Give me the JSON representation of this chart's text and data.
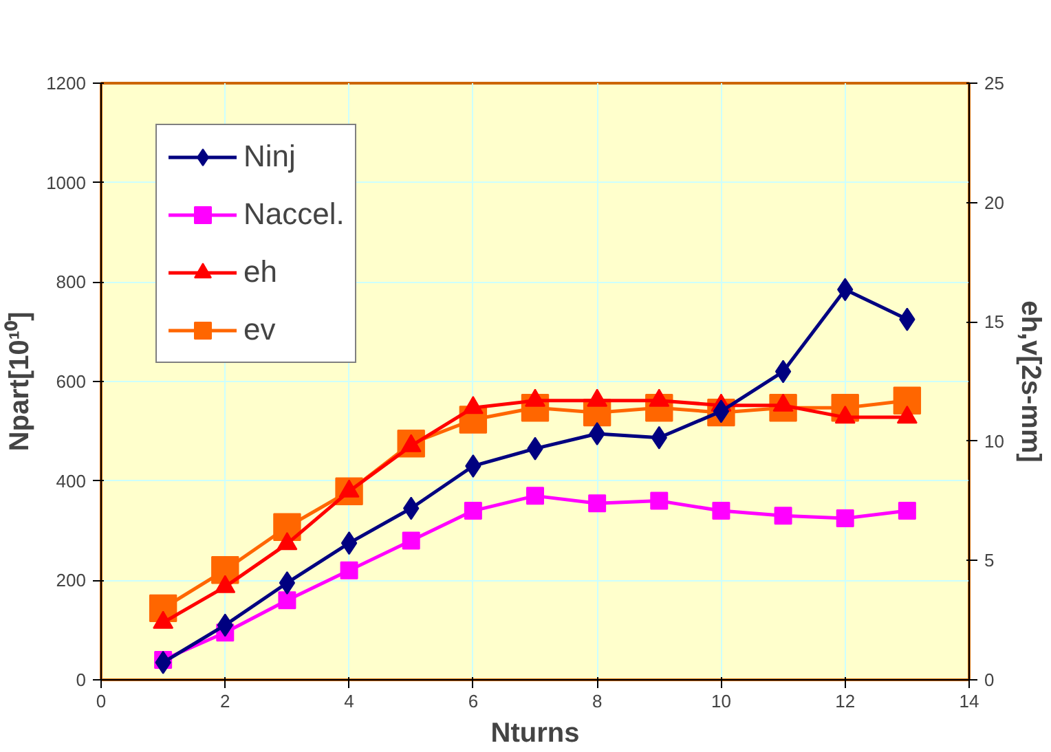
{
  "chart_data": {
    "type": "line",
    "xlabel": "Nturns",
    "ylabel": "Npart[10¹⁰]",
    "y2label": "eh,v[2s-mm]",
    "x": [
      1,
      2,
      3,
      4,
      5,
      6,
      7,
      8,
      9,
      10,
      11,
      12,
      13
    ],
    "xlim": [
      0,
      14
    ],
    "xticks": [
      0,
      2,
      4,
      6,
      8,
      10,
      12,
      14
    ],
    "ylim": [
      0,
      1200
    ],
    "yticks": [
      0,
      200,
      400,
      600,
      800,
      1000,
      1200
    ],
    "y2lim": [
      0,
      25
    ],
    "y2ticks": [
      0,
      5,
      10,
      15,
      20,
      25
    ],
    "grid": true,
    "legend": "top left",
    "line_style": "solid",
    "series": [
      {
        "name": "Ninj",
        "color": "#000080",
        "marker": "diamond",
        "values": [
          35,
          110,
          195,
          275,
          345,
          430,
          465,
          495,
          487,
          540,
          620,
          785,
          725
        ]
      },
      {
        "name": "Naccel.",
        "color": "#ff00ff",
        "marker": "square",
        "values": [
          40,
          95,
          160,
          220,
          280,
          340,
          370,
          355,
          360,
          340,
          330,
          325,
          340
        ]
      },
      {
        "name": "eh",
        "color": "#ff0000",
        "marker": "triangle",
        "axis": "y2",
        "values": [
          2.4,
          3.9,
          5.7,
          7.9,
          9.8,
          11.4,
          11.7,
          11.7,
          11.7,
          11.5,
          11.5,
          11.0,
          11.0
        ]
      },
      {
        "name": "ev",
        "color": "#ff6600",
        "marker": "square",
        "axis": "y2",
        "values": [
          3.0,
          4.6,
          6.4,
          7.9,
          9.9,
          10.9,
          11.4,
          11.2,
          11.4,
          11.2,
          11.4,
          11.4,
          11.7
        ]
      }
    ]
  }
}
